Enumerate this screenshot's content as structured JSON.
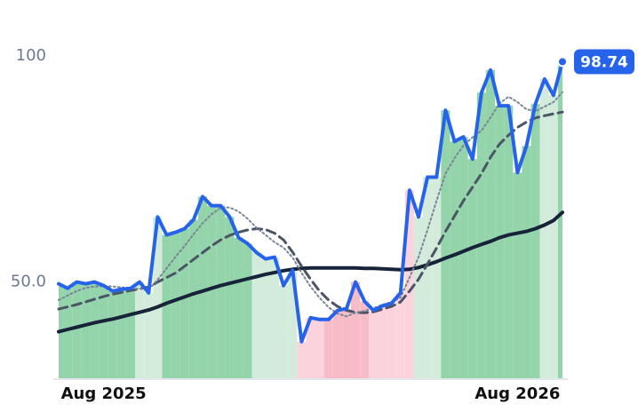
{
  "chart_data": {
    "type": "line",
    "categories": [
      null,
      null,
      null,
      null,
      null,
      "Aug 2025",
      null,
      null,
      null,
      null,
      null,
      null,
      null,
      null,
      null,
      null,
      null,
      null,
      null,
      null,
      null,
      null,
      null,
      null,
      null,
      null,
      null,
      null,
      null,
      null,
      null,
      null,
      null,
      null,
      null,
      null,
      null,
      null,
      null,
      null,
      null,
      null,
      null,
      null,
      null,
      null,
      null,
      null,
      null,
      null,
      null,
      "Aug 2026",
      null,
      null,
      null,
      null,
      null
    ],
    "series": [
      {
        "color": "#2563eb",
        "style": "solid",
        "width": 4,
        "fill_colors": [
          "#94d4ab",
          "#94d4ab",
          "#94d4ab",
          "#94d4ab",
          "#94d4ab",
          "#94d4ab",
          "#94d4ab",
          "#94d4ab",
          "#94d4ab",
          "#d2ebdb",
          "#d2ebdb",
          "#d2ebdb",
          "#94d4ab",
          "#94d4ab",
          "#94d4ab",
          "#94d4ab",
          "#94d4ab",
          "#94d4ab",
          "#94d4ab",
          "#94d4ab",
          "#94d4ab",
          "#94d4ab",
          "#d2ebdb",
          "#d2ebdb",
          "#d2ebdb",
          "#d2ebdb",
          "#d2ebdb",
          "#fbd3dc",
          "#fbd3dc",
          "#fbd3dc",
          "#f7bcc8",
          "#f7bcc8",
          "#f7bcc8",
          "#f7bcc8",
          "#f7bcc8",
          "#fbd3dc",
          "#fbd3dc",
          "#fbd3dc",
          "#fbd3dc",
          "#fbd3dc",
          "#d2ebdb",
          "#d2ebdb",
          "#d2ebdb",
          "#94d4ab",
          "#94d4ab",
          "#94d4ab",
          "#94d4ab",
          "#94d4ab",
          "#94d4ab",
          "#94d4ab",
          "#94d4ab",
          "#94d4ab",
          "#94d4ab",
          "#94d4ab",
          "#d2ebdb",
          "#d2ebdb",
          "#94d4ab"
        ],
        "values": [
          49.6,
          48.6,
          50,
          49.6,
          50,
          49.2,
          48,
          48.4,
          48.6,
          50,
          47.6,
          64.4,
          60.4,
          61,
          61.8,
          63.8,
          68.9,
          66.9,
          66.9,
          64.4,
          59.8,
          58.5,
          56.5,
          55.1,
          55.5,
          49.2,
          52.6,
          36.8,
          42.1,
          41.7,
          41.7,
          43.7,
          44.1,
          50,
          45.7,
          43.7,
          44.7,
          45.3,
          47.6,
          70.3,
          64.4,
          73.2,
          73.2,
          88,
          81.1,
          82.1,
          77.2,
          91.9,
          96.9,
          89,
          89,
          74.2,
          80.1,
          89.4,
          94.9,
          91.3,
          98.74
        ]
      },
      {
        "color": "#7a8597",
        "style": "dotted",
        "width": 2,
        "values": [
          46,
          47,
          48,
          48.7,
          49,
          49.1,
          49,
          48.8,
          48.6,
          48.5,
          48.3,
          50.5,
          53,
          55.6,
          58,
          60.6,
          63,
          65,
          66.4,
          66.5,
          65.6,
          64,
          62,
          60.4,
          58.8,
          57.6,
          55.4,
          52,
          49,
          46.5,
          44.4,
          43,
          42.4,
          43.2,
          43.6,
          44.2,
          45,
          45.5,
          46.6,
          51,
          55.5,
          61.5,
          68,
          74,
          77.4,
          80.2,
          82,
          83.5,
          86.4,
          89.5,
          91,
          89.8,
          88.2,
          87.8,
          88.8,
          89.8,
          92
        ]
      },
      {
        "color": "#4b5565",
        "style": "dashed",
        "width": 3,
        "values": [
          44,
          44.5,
          45,
          45.6,
          46.2,
          46.8,
          47.3,
          47.7,
          48.1,
          48.5,
          48.9,
          50,
          51,
          52,
          53.5,
          55,
          56.5,
          58,
          59.3,
          60.3,
          61,
          61.5,
          61.8,
          61.6,
          60.8,
          59.3,
          56.6,
          53.5,
          50.6,
          48,
          46,
          44.6,
          43.7,
          43.3,
          43.2,
          43.4,
          44,
          44.6,
          45.6,
          48,
          50.6,
          54,
          57.5,
          61.2,
          64.6,
          68,
          71,
          74,
          77.6,
          80.5,
          82.5,
          84.2,
          85.4,
          86.3,
          86.8,
          87.2,
          87.6
        ]
      },
      {
        "color": "#172338",
        "style": "solid",
        "width": 4,
        "values": [
          39,
          39.5,
          40,
          40.5,
          41,
          41.4,
          41.8,
          42.3,
          42.8,
          43.3,
          43.8,
          44.5,
          45.3,
          46,
          46.7,
          47.4,
          48,
          48.6,
          49.2,
          49.7,
          50.2,
          50.7,
          51.2,
          51.7,
          52.1,
          52.5,
          52.8,
          53,
          53.1,
          53.1,
          53.1,
          53.1,
          53.1,
          53.1,
          53,
          53,
          52.9,
          52.8,
          52.7,
          52.8,
          53.2,
          53.8,
          54.5,
          55.3,
          56,
          56.8,
          57.6,
          58.3,
          59,
          59.8,
          60.4,
          60.8,
          61.2,
          61.8,
          62.6,
          63.6,
          65.4
        ]
      }
    ],
    "ylim": [
      28.5,
      106.5
    ],
    "yticks": [
      {
        "value": 50,
        "label": "50.0"
      },
      100
    ],
    "grid": false
  }
}
